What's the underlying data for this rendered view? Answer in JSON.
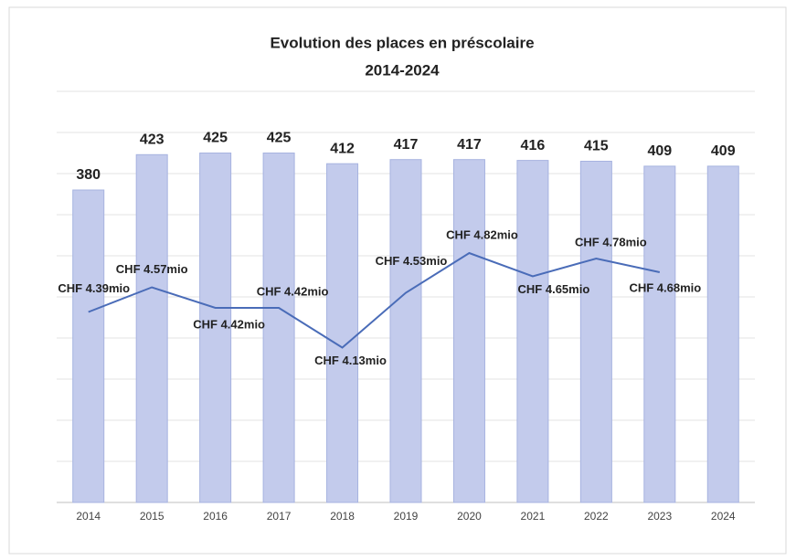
{
  "chart_data": {
    "type": "bar",
    "title": "Evolution  des places en préscolaire",
    "subtitle": "2014-2024",
    "categories": [
      "2014",
      "2015",
      "2016",
      "2017",
      "2018",
      "2019",
      "2020",
      "2021",
      "2022",
      "2023",
      "2024"
    ],
    "series": [
      {
        "type": "bar",
        "color": "#c3cbec",
        "values": [
          380,
          423,
          425,
          425,
          412,
          417,
          417,
          416,
          415,
          409,
          409
        ]
      },
      {
        "type": "line",
        "axis": "y2",
        "color": "#4a6cb8",
        "values": [
          4.39,
          4.57,
          4.42,
          4.42,
          4.13,
          4.53,
          4.82,
          4.65,
          4.78,
          4.68,
          null
        ],
        "value_labels": [
          "CHF 4.39mio",
          "CHF 4.57mio",
          "CHF 4.42mio",
          "CHF 4.42mio",
          "CHF 4.13mio",
          "CHF 4.53mio",
          "CHF 4.82mio",
          "CHF 4.65mio",
          "CHF 4.78mio",
          "CHF 4.68mio",
          null
        ]
      }
    ],
    "ylim": [
      0,
      500
    ],
    "yticks": [
      0,
      50,
      100,
      150,
      200,
      250,
      300,
      350,
      400,
      450,
      500
    ],
    "y2lim": [
      3,
      6
    ],
    "grid": true
  }
}
